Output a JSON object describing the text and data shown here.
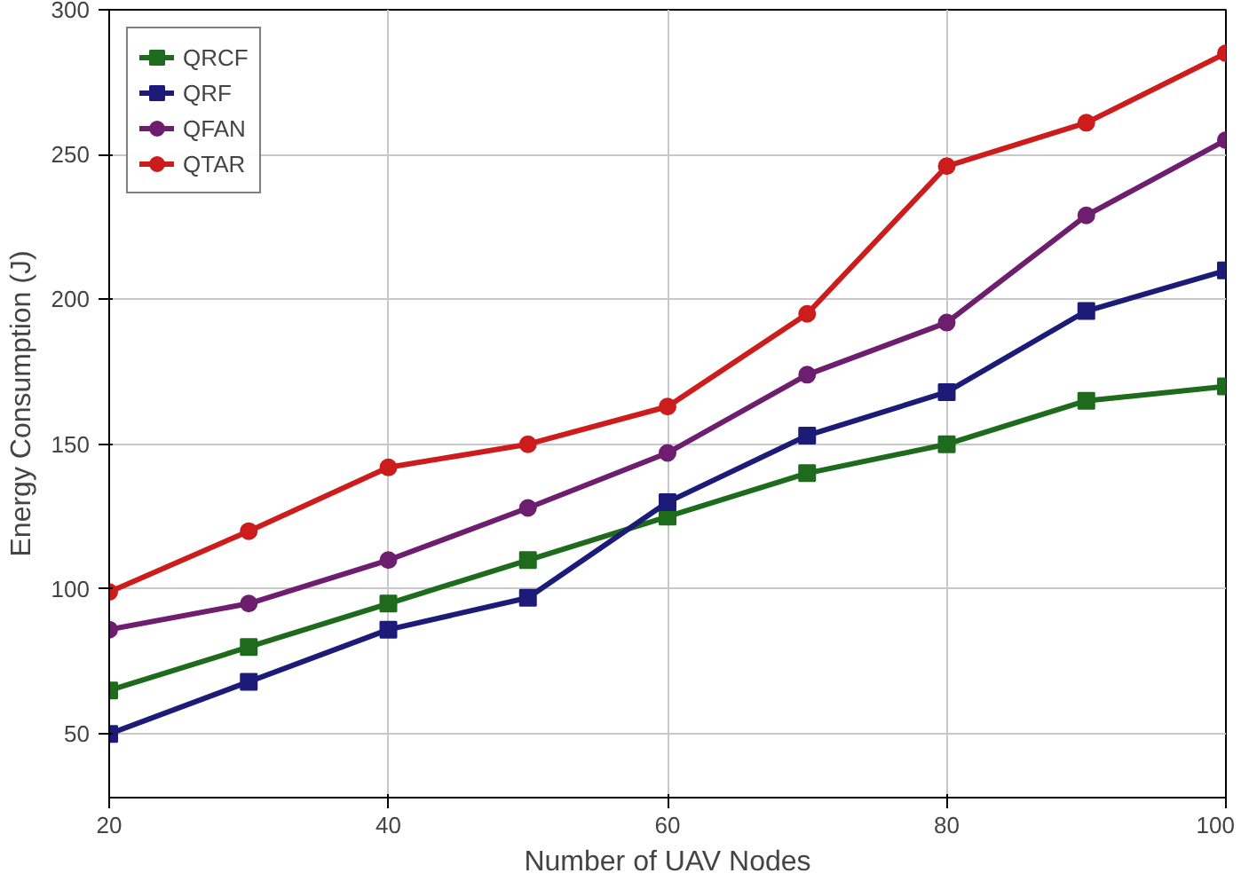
{
  "chart_data": {
    "type": "line",
    "xlabel": "Number of UAV Nodes",
    "ylabel": "Energy Consumption (J)",
    "x": [
      20,
      30,
      40,
      50,
      60,
      70,
      80,
      90,
      100
    ],
    "xlim": [
      20,
      100
    ],
    "xticks": [
      20,
      40,
      60,
      80,
      100
    ],
    "ylim": [
      28,
      300
    ],
    "yticks": [
      50,
      100,
      150,
      200,
      250,
      300
    ],
    "grid": true,
    "legend": "top left",
    "line_style": "solid",
    "series": [
      {
        "name": "QRCF",
        "color": "#1e6b1e",
        "marker": "square",
        "values": [
          65,
          80,
          95,
          110,
          125,
          140,
          150,
          165,
          170
        ]
      },
      {
        "name": "QRF",
        "color": "#1c1c78",
        "marker": "square",
        "values": [
          50,
          68,
          86,
          97,
          130,
          153,
          168,
          196,
          210
        ]
      },
      {
        "name": "QFAN",
        "color": "#6e1e6e",
        "marker": "circle",
        "values": [
          86,
          95,
          110,
          128,
          147,
          174,
          192,
          229,
          255
        ]
      },
      {
        "name": "QTAR",
        "color": "#cc1c1c",
        "marker": "circle",
        "values": [
          99,
          120,
          142,
          150,
          163,
          195,
          246,
          261,
          285
        ]
      }
    ]
  }
}
